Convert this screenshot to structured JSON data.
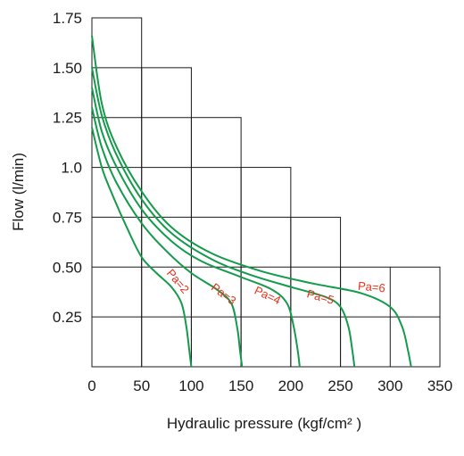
{
  "chart_data": {
    "type": "line",
    "title": "",
    "xlabel": "Hydraulic pressure (kgf/cm² )",
    "ylabel": "Flow (l/min)",
    "xlim": [
      0,
      350
    ],
    "ylim": [
      0,
      1.75
    ],
    "x_ticks": [
      "0",
      "50",
      "100",
      "150",
      "200",
      "250",
      "300",
      "350"
    ],
    "y_ticks": [
      "0.25",
      "0.50",
      "0.75",
      "1.0",
      "1.25",
      "1.50",
      "1.75"
    ],
    "grid": "staircase",
    "grid_cells": [
      {
        "x": [
          0,
          50
        ],
        "top_y": 1.75
      },
      {
        "x": [
          50,
          100
        ],
        "top_y": 1.5
      },
      {
        "x": [
          100,
          150
        ],
        "top_y": 1.25
      },
      {
        "x": [
          150,
          200
        ],
        "top_y": 1.0
      },
      {
        "x": [
          200,
          250
        ],
        "top_y": 0.75
      },
      {
        "x": [
          250,
          350
        ],
        "top_y": 0.5
      }
    ],
    "series_color": "#149a4b",
    "label_color": "#e8311a",
    "series": [
      {
        "label": "Pa=2",
        "x": [
          0,
          10,
          20,
          35,
          50,
          65,
          80,
          90,
          95,
          98,
          100
        ],
        "y": [
          1.2,
          1.0,
          0.87,
          0.7,
          0.55,
          0.47,
          0.4,
          0.32,
          0.2,
          0.08,
          0
        ]
      },
      {
        "label": "Pa=3",
        "x": [
          0,
          10,
          25,
          50,
          75,
          100,
          125,
          140,
          146,
          149,
          151
        ],
        "y": [
          1.3,
          1.1,
          0.92,
          0.72,
          0.58,
          0.47,
          0.39,
          0.32,
          0.2,
          0.08,
          0
        ]
      },
      {
        "label": "Pa=4",
        "x": [
          0,
          10,
          25,
          50,
          80,
          110,
          150,
          180,
          196,
          203,
          207,
          209
        ],
        "y": [
          1.4,
          1.18,
          1.0,
          0.79,
          0.63,
          0.53,
          0.45,
          0.39,
          0.32,
          0.2,
          0.08,
          0
        ]
      },
      {
        "label": "Pa=5",
        "x": [
          0,
          10,
          25,
          50,
          80,
          120,
          160,
          200,
          235,
          250,
          258,
          262,
          264
        ],
        "y": [
          1.5,
          1.26,
          1.06,
          0.84,
          0.67,
          0.54,
          0.46,
          0.4,
          0.35,
          0.3,
          0.2,
          0.08,
          0
        ]
      },
      {
        "label": "Pa=6",
        "x": [
          0,
          10,
          25,
          50,
          80,
          120,
          170,
          220,
          270,
          300,
          312,
          318,
          321
        ],
        "y": [
          1.66,
          1.32,
          1.1,
          0.88,
          0.7,
          0.57,
          0.48,
          0.42,
          0.37,
          0.3,
          0.2,
          0.08,
          0
        ]
      }
    ]
  }
}
